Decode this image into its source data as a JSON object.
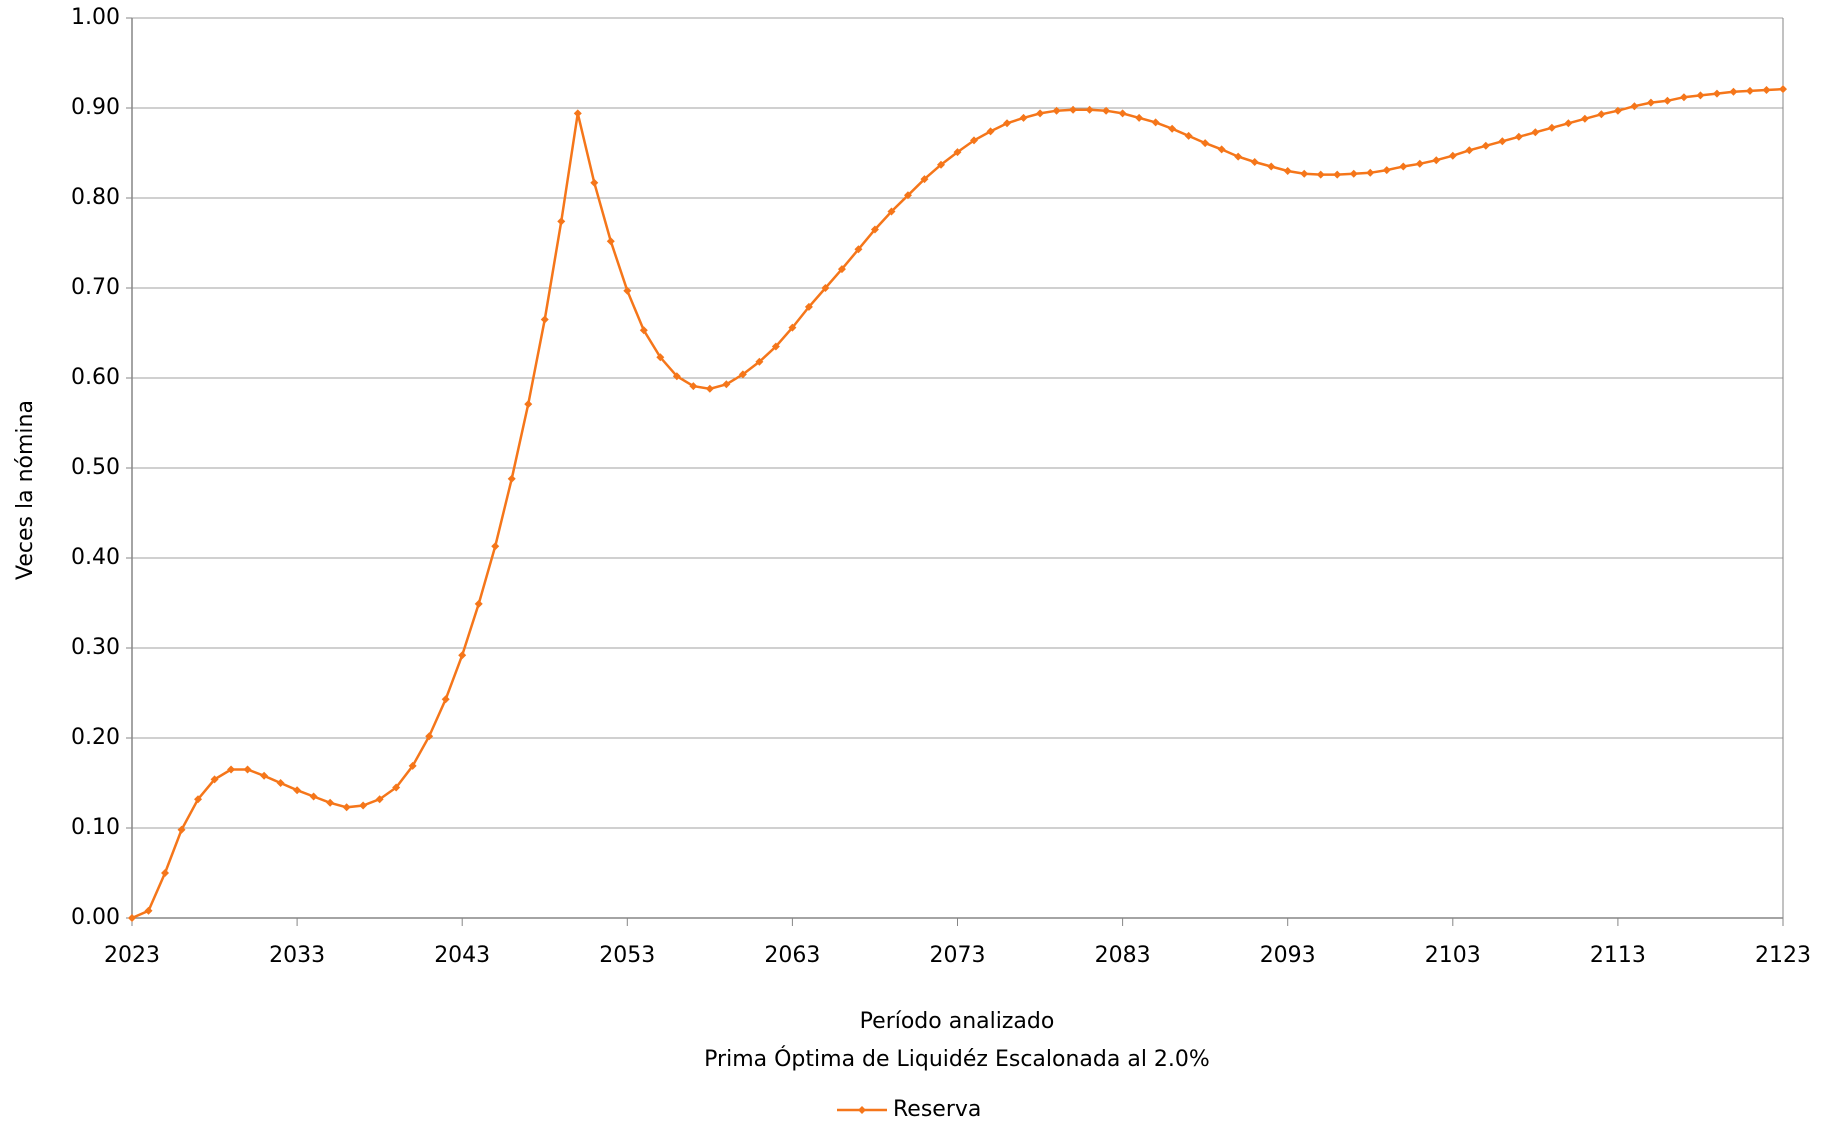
{
  "chart_data": {
    "type": "line",
    "xlabel": "Período analizado",
    "subtitle": "Prima Óptima de Liquidéz Escalonada al 2.0%",
    "ylabel": "Veces la nómina",
    "x": [
      2023,
      2024,
      2025,
      2026,
      2027,
      2028,
      2029,
      2030,
      2031,
      2032,
      2033,
      2034,
      2035,
      2036,
      2037,
      2038,
      2039,
      2040,
      2041,
      2042,
      2043,
      2044,
      2045,
      2046,
      2047,
      2048,
      2049,
      2050,
      2051,
      2052,
      2053,
      2054,
      2055,
      2056,
      2057,
      2058,
      2059,
      2060,
      2061,
      2062,
      2063,
      2064,
      2065,
      2066,
      2067,
      2068,
      2069,
      2070,
      2071,
      2072,
      2073,
      2074,
      2075,
      2076,
      2077,
      2078,
      2079,
      2080,
      2081,
      2082,
      2083,
      2084,
      2085,
      2086,
      2087,
      2088,
      2089,
      2090,
      2091,
      2092,
      2093,
      2094,
      2095,
      2096,
      2097,
      2098,
      2099,
      2100,
      2101,
      2102,
      2103,
      2104,
      2105,
      2106,
      2107,
      2108,
      2109,
      2110,
      2111,
      2112,
      2113,
      2114,
      2115,
      2116,
      2117,
      2118,
      2119,
      2120,
      2121,
      2122,
      2123
    ],
    "series": [
      {
        "name": "Reserva",
        "color": "#f5761a",
        "values": [
          0.0,
          0.008,
          0.05,
          0.098,
          0.132,
          0.154,
          0.165,
          0.165,
          0.158,
          0.15,
          0.142,
          0.135,
          0.128,
          0.123,
          0.125,
          0.132,
          0.145,
          0.169,
          0.202,
          0.243,
          0.292,
          0.349,
          0.413,
          0.488,
          0.571,
          0.665,
          0.774,
          0.894,
          0.817,
          0.752,
          0.697,
          0.653,
          0.623,
          0.602,
          0.591,
          0.588,
          0.593,
          0.604,
          0.618,
          0.635,
          0.656,
          0.679,
          0.7,
          0.721,
          0.743,
          0.765,
          0.785,
          0.803,
          0.821,
          0.837,
          0.851,
          0.864,
          0.874,
          0.883,
          0.889,
          0.894,
          0.897,
          0.898,
          0.898,
          0.897,
          0.894,
          0.889,
          0.884,
          0.877,
          0.869,
          0.861,
          0.854,
          0.846,
          0.84,
          0.835,
          0.83,
          0.827,
          0.826,
          0.826,
          0.827,
          0.828,
          0.831,
          0.835,
          0.838,
          0.842,
          0.847,
          0.853,
          0.858,
          0.863,
          0.868,
          0.873,
          0.878,
          0.883,
          0.888,
          0.893,
          0.897,
          0.902,
          0.906,
          0.908,
          0.912,
          0.914,
          0.916,
          0.918,
          0.919,
          0.92,
          0.921
        ]
      }
    ],
    "xlim": [
      2023,
      2123
    ],
    "xticks": [
      2023,
      2033,
      2043,
      2053,
      2063,
      2073,
      2083,
      2093,
      2103,
      2113,
      2123
    ],
    "ylim": [
      0,
      1
    ],
    "yticks": [
      {
        "value": 0,
        "label": "0.00"
      },
      {
        "value": 0.1,
        "label": "0.10"
      },
      {
        "value": 0.2,
        "label": "0.20"
      },
      {
        "value": 0.3,
        "label": "0.30"
      },
      {
        "value": 0.4,
        "label": "0.40"
      },
      {
        "value": 0.5,
        "label": "0.50"
      },
      {
        "value": 0.6,
        "label": "0.60"
      },
      {
        "value": 0.7,
        "label": "0.70"
      },
      {
        "value": 0.8,
        "label": "0.80"
      },
      {
        "value": 0.9,
        "label": "0.90"
      },
      {
        "value": 1,
        "label": "1.00"
      }
    ],
    "grid": true,
    "legend": "bottom"
  }
}
